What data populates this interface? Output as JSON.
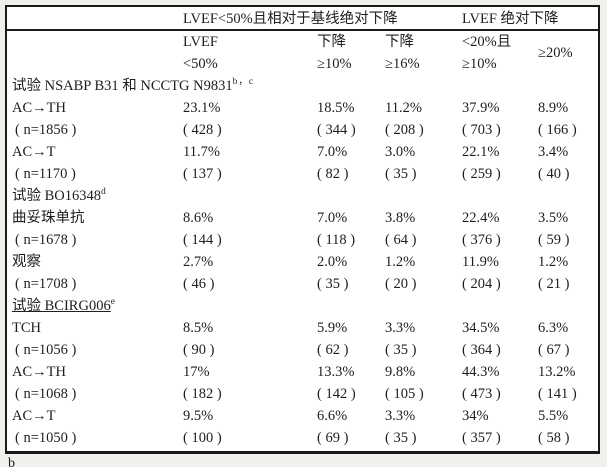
{
  "page": {
    "background": "#f0efec",
    "table_border_color": "#1a1a1a",
    "footnote_stub": "b"
  },
  "table": {
    "group_headers": {
      "left": "LVEF<50%且相对于基线绝对下降",
      "right": "LVEF 绝对下降"
    },
    "column_headers": [
      {
        "line1": "LVEF",
        "line2": "<50%"
      },
      {
        "line1": "下降",
        "line2": "≥10%"
      },
      {
        "line1": "下降",
        "line2": "≥16%"
      },
      {
        "line1": "<20%且",
        "line2": "≥10%"
      },
      {
        "line1": "≥20%",
        "line2": ""
      }
    ],
    "sections": [
      {
        "title": "试验 NSABP B31 和 NCCTG N9831",
        "superscript": "b，c",
        "underlined": false,
        "rows": [
          {
            "label": "AC→TH",
            "sub": "( n=1856 )",
            "values": [
              "23.1%",
              "18.5%",
              "11.2%",
              "37.9%",
              "8.9%"
            ],
            "sub_values": [
              "( 428 )",
              "( 344 )",
              "( 208 )",
              "( 703 )",
              "( 166 )"
            ]
          },
          {
            "label": "AC→T",
            "sub": "( n=1170 )",
            "values": [
              "11.7%",
              "7.0%",
              "3.0%",
              "22.1%",
              "3.4%"
            ],
            "sub_values": [
              "( 137 )",
              "( 82 )",
              "( 35 )",
              "( 259 )",
              "( 40 )"
            ]
          }
        ]
      },
      {
        "title": "试验 BO16348",
        "superscript": "d",
        "underlined": false,
        "rows": [
          {
            "label": "曲妥珠单抗",
            "sub": "( n=1678 )",
            "values": [
              "8.6%",
              "7.0%",
              "3.8%",
              "22.4%",
              "3.5%"
            ],
            "sub_values": [
              "( 144 )",
              "( 118 )",
              "( 64 )",
              "( 376 )",
              "( 59 )"
            ]
          },
          {
            "label": "观察",
            "sub": "( n=1708 )",
            "values": [
              "2.7%",
              "2.0%",
              "1.2%",
              "11.9%",
              "1.2%"
            ],
            "sub_values": [
              "( 46 )",
              "( 35 )",
              "( 20 )",
              "( 204 )",
              "( 21 )"
            ]
          }
        ]
      },
      {
        "title": "试验 BCIRG006",
        "superscript": "e",
        "underlined": true,
        "rows": [
          {
            "label": "TCH",
            "sub": "( n=1056 )",
            "values": [
              "8.5%",
              "5.9%",
              "3.3%",
              "34.5%",
              "6.3%"
            ],
            "sub_values": [
              "( 90 )",
              "( 62 )",
              "( 35 )",
              "( 364 )",
              "( 67 )"
            ]
          },
          {
            "label": "AC→TH",
            "sub": "( n=1068 )",
            "values": [
              "17%",
              "13.3%",
              "9.8%",
              "44.3%",
              "13.2%"
            ],
            "sub_values": [
              "( 182 )",
              "( 142 )",
              "( 105 )",
              "( 473 )",
              "( 141 )"
            ]
          },
          {
            "label": "AC→T",
            "sub": "( n=1050 )",
            "values": [
              "9.5%",
              "6.6%",
              "3.3%",
              "34%",
              "5.5%"
            ],
            "sub_values": [
              "( 100 )",
              "( 69 )",
              "( 35 )",
              "( 357 )",
              "( 58 )"
            ]
          }
        ]
      }
    ]
  }
}
